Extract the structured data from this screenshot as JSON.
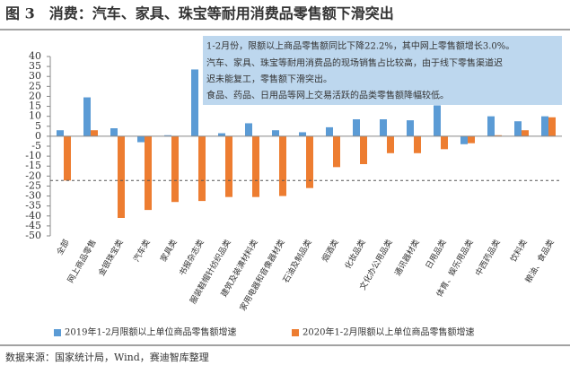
{
  "chart_data": {
    "type": "bar",
    "title": "图 3　消费：汽车、家具、珠宝等耐用消费品零售额下滑突出",
    "annotations": [
      "1-2月份，限额以上商品零售额同比下降22.2%，其中网上零售额增长3.0%。",
      "汽车、家具、珠宝等耐用消费品的现场销售占比较高，由于线下零售渠道迟",
      "迟未能复工，零售额下滑突出。",
      "食品、药品、日用品等网上交易活跃的品类零售额降幅较低。"
    ],
    "source": "数据来源：国家统计局，Wind，赛迪智库整理",
    "categories": [
      "全部",
      "网上商品零售",
      "金银珠宝类",
      "汽车类",
      "家具类",
      "书报杂志类",
      "服装鞋帽针纺织品类",
      "建筑及装潢材料类",
      "家用电器和音像器材类",
      "石油及制品类",
      "烟酒类",
      "化妆品类",
      "文化办公用品类",
      "通讯器材类",
      "日用品类",
      "体育、娱乐用品类",
      "中西药品类",
      "饮料类",
      "粮油、食品类"
    ],
    "series": [
      {
        "name": "2019年1-2月限额以上单位商品零售额增速",
        "color": "#5b9bd5",
        "values": [
          3,
          19.5,
          4,
          -3,
          0.5,
          33.5,
          1.5,
          6.5,
          3,
          2,
          4.5,
          8.5,
          8.5,
          8,
          15.5,
          -4,
          10,
          7.5,
          10
        ]
      },
      {
        "name": "2020年1-2月限额以上单位商品零售额增速",
        "color": "#ed7d31",
        "values": [
          -22.2,
          3,
          -41,
          -37,
          -33,
          -32.5,
          -30.5,
          -30.5,
          -30,
          -26,
          -15.5,
          -14,
          -8.5,
          -8.5,
          -6.5,
          -3.5,
          0.5,
          3,
          9.5
        ]
      }
    ],
    "reference_line": -22.2,
    "ylim": [
      -50,
      40
    ],
    "yticks": [
      40,
      35,
      30,
      25,
      20,
      15,
      10,
      5,
      0,
      -5,
      -10,
      -15,
      -20,
      -25,
      -30,
      -35,
      -40,
      -45,
      -50
    ]
  }
}
